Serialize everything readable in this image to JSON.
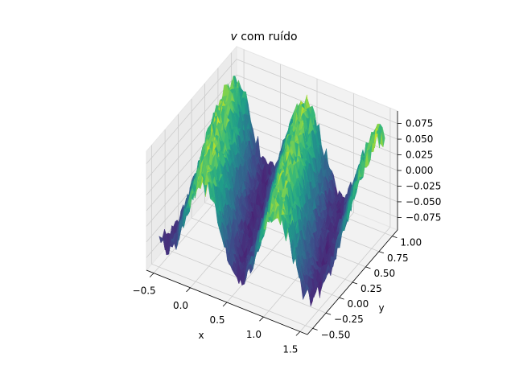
{
  "chart_data": {
    "type": "surface",
    "title_var": "v",
    "title_rest": " com ruído",
    "xlabel": "x",
    "ylabel": "y",
    "zlabel": "",
    "xlim": [
      -0.6,
      1.6
    ],
    "ylim": [
      -0.6,
      1.1
    ],
    "zlim": [
      -0.095,
      0.095
    ],
    "x_ticks": [
      -0.5,
      0.0,
      0.5,
      1.0,
      1.5
    ],
    "x_tick_labels": [
      "−0.5",
      "0.0",
      "0.5",
      "1.0",
      "1.5"
    ],
    "y_ticks": [
      -0.5,
      -0.25,
      0.0,
      0.25,
      0.5,
      0.75,
      1.0
    ],
    "y_tick_labels": [
      "−0.50",
      "−0.25",
      "0.00",
      "0.25",
      "0.50",
      "0.75",
      "1.00"
    ],
    "z_ticks": [
      -0.075,
      -0.05,
      -0.025,
      0.0,
      0.025,
      0.05,
      0.075
    ],
    "z_tick_labels": [
      "−0.075",
      "−0.050",
      "−0.025",
      "0.000",
      "0.025",
      "0.050",
      "0.075"
    ],
    "x_range": [
      -0.5,
      1.5
    ],
    "y_range": [
      -0.5,
      1.0
    ],
    "colormap": "viridis",
    "pane_color": "#f2f2f2",
    "grid": true
  }
}
